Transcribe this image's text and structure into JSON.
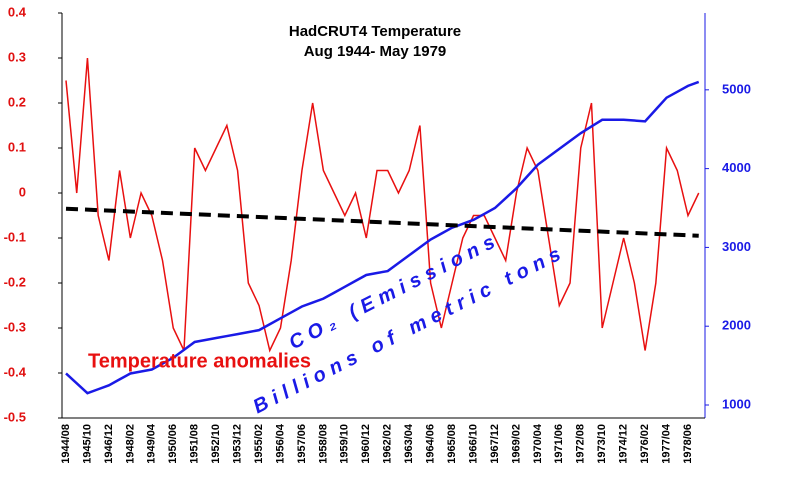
{
  "chart_data": {
    "type": "line",
    "title": [
      "HadCRUT4 Temperature",
      "Aug 1944- May 1979"
    ],
    "annotations": [
      "Temperature anomalies",
      "CO₂ (Emissions",
      "Billions of metric tons"
    ],
    "categories": [
      "1944/08",
      null,
      "1945/10",
      null,
      "1946/12",
      null,
      "1948/02",
      null,
      "1949/04",
      null,
      "1950/06",
      null,
      "1951/08",
      null,
      "1952/10",
      null,
      "1953/12",
      null,
      "1955/02",
      null,
      "1956/04",
      null,
      "1957/06",
      null,
      "1958/08",
      null,
      "1959/10",
      null,
      "1960/12",
      null,
      "1962/02",
      null,
      "1963/04",
      null,
      "1964/06",
      null,
      "1965/08",
      null,
      "1966/10",
      null,
      "1967/12",
      null,
      "1969/02",
      null,
      "1970/04",
      null,
      "1971/06",
      null,
      "1972/08",
      null,
      "1973/10",
      null,
      "1974/12",
      null,
      "1976/02",
      null,
      "1977/04",
      null,
      "1978/06",
      null
    ],
    "series": [
      {
        "color": "#e81010",
        "values": [
          0.25,
          0.0,
          0.3,
          -0.05,
          -0.15,
          0.05,
          -0.1,
          0.0,
          -0.05,
          -0.15,
          -0.3,
          -0.35,
          0.1,
          0.05,
          0.1,
          0.15,
          0.05,
          -0.2,
          -0.25,
          -0.35,
          -0.3,
          -0.15,
          0.05,
          0.2,
          0.05,
          0.0,
          -0.05,
          0.0,
          -0.1,
          0.05,
          0.05,
          0.0,
          0.05,
          0.15,
          -0.2,
          -0.3,
          -0.2,
          -0.1,
          -0.05,
          -0.05,
          -0.1,
          -0.15,
          0.0,
          0.1,
          0.05,
          -0.1,
          -0.25,
          -0.2,
          0.1,
          0.2,
          -0.3,
          -0.2,
          -0.1,
          -0.2,
          -0.35,
          -0.2,
          0.1,
          0.05,
          -0.05,
          0.0
        ]
      },
      {
        "color": "#1a1ae6",
        "axis": "y2",
        "values": [
          1400,
          1275,
          1150,
          1200,
          1250,
          1325,
          1400,
          1425,
          1450,
          1525,
          1600,
          1700,
          1800,
          1825,
          1850,
          1875,
          1900,
          1925,
          1950,
          2025,
          2100,
          2175,
          2250,
          2300,
          2350,
          2425,
          2500,
          2575,
          2650,
          2675,
          2700,
          2800,
          2900,
          3000,
          3100,
          3175,
          3250,
          3300,
          3350,
          3425,
          3500,
          3625,
          3750,
          3900,
          4050,
          4150,
          4250,
          4350,
          4450,
          4535,
          4620,
          4620,
          4620,
          4610,
          4600,
          4750,
          4900,
          4975,
          5050,
          5100
        ]
      }
    ],
    "trend": {
      "color": "#000000",
      "values": [
        -0.035,
        -0.095
      ]
    },
    "ylim": [
      -0.5,
      0.4
    ],
    "yticks": [
      -0.5,
      -0.4,
      -0.3,
      -0.2,
      -0.1,
      0,
      0.1,
      0.2,
      0.3,
      0.4
    ],
    "y2lim": [
      835,
      5975
    ],
    "y2ticks": [
      1000,
      2000,
      3000,
      4000,
      5000
    ]
  }
}
